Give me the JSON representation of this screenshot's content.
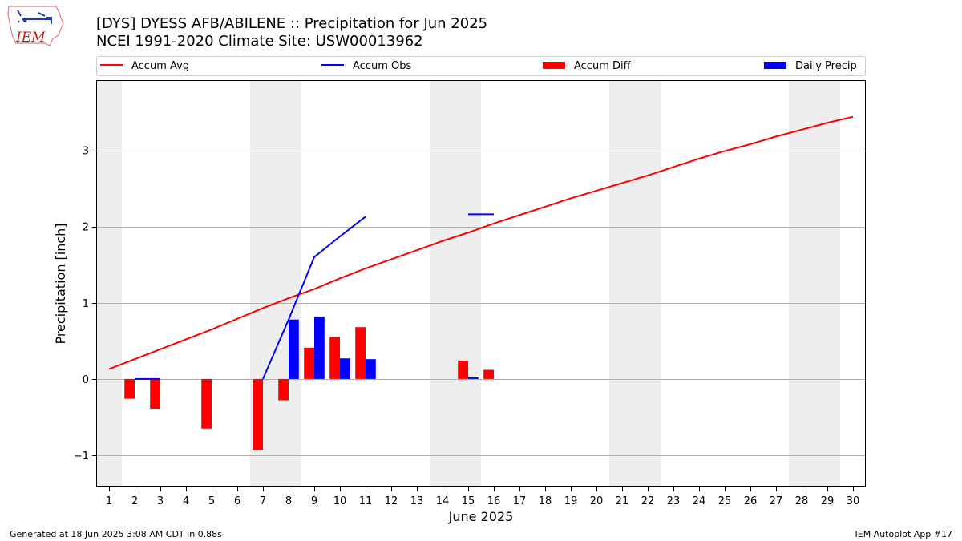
{
  "header": {
    "title_line1": "[DYS] DYESS AFB/ABILENE :: Precipitation for Jun 2025",
    "title_line2": "NCEI 1991-2020 Climate Site: USW00013962",
    "logo_text": "IEM"
  },
  "footer": {
    "generated": "Generated at 18 Jun 2025 3:08 AM CDT in 0.88s",
    "app": "IEM Autoplot App #17"
  },
  "chart_data": {
    "type": "bar",
    "xlabel": "June 2025",
    "ylabel": "Precipitation [inch]",
    "xlim": [
      0.5,
      30.5
    ],
    "ylim": [
      -1.42,
      3.92
    ],
    "x_ticks": [
      1,
      2,
      3,
      4,
      5,
      6,
      7,
      8,
      9,
      10,
      11,
      12,
      13,
      14,
      15,
      16,
      17,
      18,
      19,
      20,
      21,
      22,
      23,
      24,
      25,
      26,
      27,
      28,
      29,
      30
    ],
    "y_ticks": [
      -1,
      0,
      1,
      2,
      3
    ],
    "y_tick_labels": [
      "−1",
      "0",
      "1",
      "2",
      "3"
    ],
    "grid": "horizontal",
    "legend_placement": "top",
    "weekend_shading": [
      [
        0.5,
        1.5
      ],
      [
        6.5,
        8.5
      ],
      [
        13.5,
        15.5
      ],
      [
        20.5,
        22.5
      ],
      [
        27.5,
        29.5
      ]
    ],
    "colors": {
      "accum_avg": "#ff0000",
      "accum_obs": "#0000ff",
      "accum_diff": "#ff0000",
      "daily_precip": "#0000ff",
      "weekend": "#eeeeee",
      "grid": "#b0b0b0"
    },
    "legend": [
      {
        "key": "accum_avg",
        "label": "Accum Avg",
        "kind": "line"
      },
      {
        "key": "accum_obs",
        "label": "Accum Obs",
        "kind": "line"
      },
      {
        "key": "accum_diff",
        "label": "Accum Diff",
        "kind": "bar"
      },
      {
        "key": "daily_precip",
        "label": "Daily Precip",
        "kind": "bar"
      }
    ],
    "series": [
      {
        "name": "Accum Avg",
        "key": "accum_avg",
        "type": "line",
        "x": [
          1,
          2,
          3,
          4,
          5,
          6,
          7,
          8,
          9,
          10,
          11,
          12,
          13,
          14,
          15,
          16,
          17,
          18,
          19,
          20,
          21,
          22,
          23,
          24,
          25,
          26,
          27,
          28,
          29,
          30
        ],
        "values": [
          0.13,
          0.26,
          0.39,
          0.52,
          0.65,
          0.79,
          0.93,
          1.06,
          1.18,
          1.32,
          1.45,
          1.57,
          1.69,
          1.81,
          1.92,
          2.04,
          2.15,
          2.26,
          2.37,
          2.47,
          2.57,
          2.67,
          2.78,
          2.89,
          2.99,
          3.08,
          3.18,
          3.27,
          3.36,
          3.44
        ]
      },
      {
        "name": "Accum Obs",
        "key": "accum_obs",
        "type": "line",
        "segments": [
          {
            "x": [
              2,
              3
            ],
            "values": [
              0.0,
              0.0
            ]
          },
          {
            "x": [
              7,
              8,
              9,
              10,
              11
            ],
            "values": [
              0.0,
              0.78,
              1.6,
              1.87,
              2.13
            ]
          },
          {
            "x": [
              15,
              16
            ],
            "values": [
              2.16,
              2.16
            ]
          }
        ]
      },
      {
        "name": "Accum Diff",
        "key": "accum_diff",
        "type": "bar",
        "x": [
          2,
          3,
          5,
          7,
          8,
          9,
          10,
          11,
          15,
          16
        ],
        "values": [
          -0.26,
          -0.39,
          -0.65,
          -0.93,
          -0.28,
          0.41,
          0.55,
          0.68,
          0.24,
          0.12
        ]
      },
      {
        "name": "Daily Precip",
        "key": "daily_precip",
        "type": "bar",
        "x": [
          8,
          9,
          10,
          11,
          15
        ],
        "values": [
          0.78,
          0.82,
          0.27,
          0.26,
          0.02
        ]
      }
    ]
  }
}
